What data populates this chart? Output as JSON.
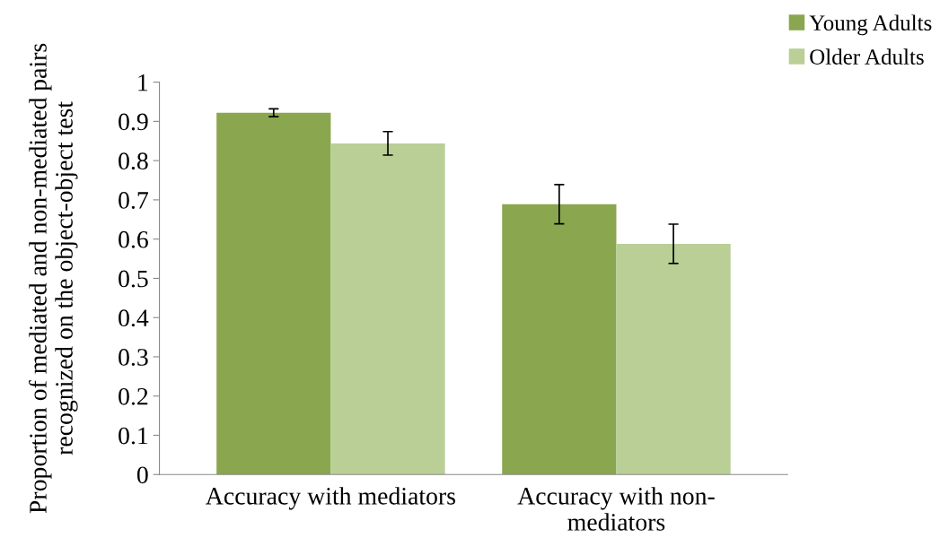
{
  "chart_data": {
    "type": "bar",
    "ylabel": "Proportion of mediated and non-mediated pairs recognized on the object-object test",
    "categories": [
      "Accuracy with mediators",
      "Accuracy with non-\nmediators"
    ],
    "series": [
      {
        "name": "Young Adults",
        "color": "#8aa64e",
        "values": [
          0.922,
          0.689
        ],
        "errors": [
          0.01,
          0.05
        ]
      },
      {
        "name": "Older Adults",
        "color": "#b9cf96",
        "values": [
          0.844,
          0.588
        ],
        "errors": [
          0.03,
          0.05
        ]
      }
    ],
    "ylim": [
      0,
      1
    ],
    "yticks": [
      0,
      0.1,
      0.2,
      0.3,
      0.4,
      0.5,
      0.6,
      0.7,
      0.8,
      0.9,
      1
    ],
    "grid": false,
    "legend": "top right"
  }
}
